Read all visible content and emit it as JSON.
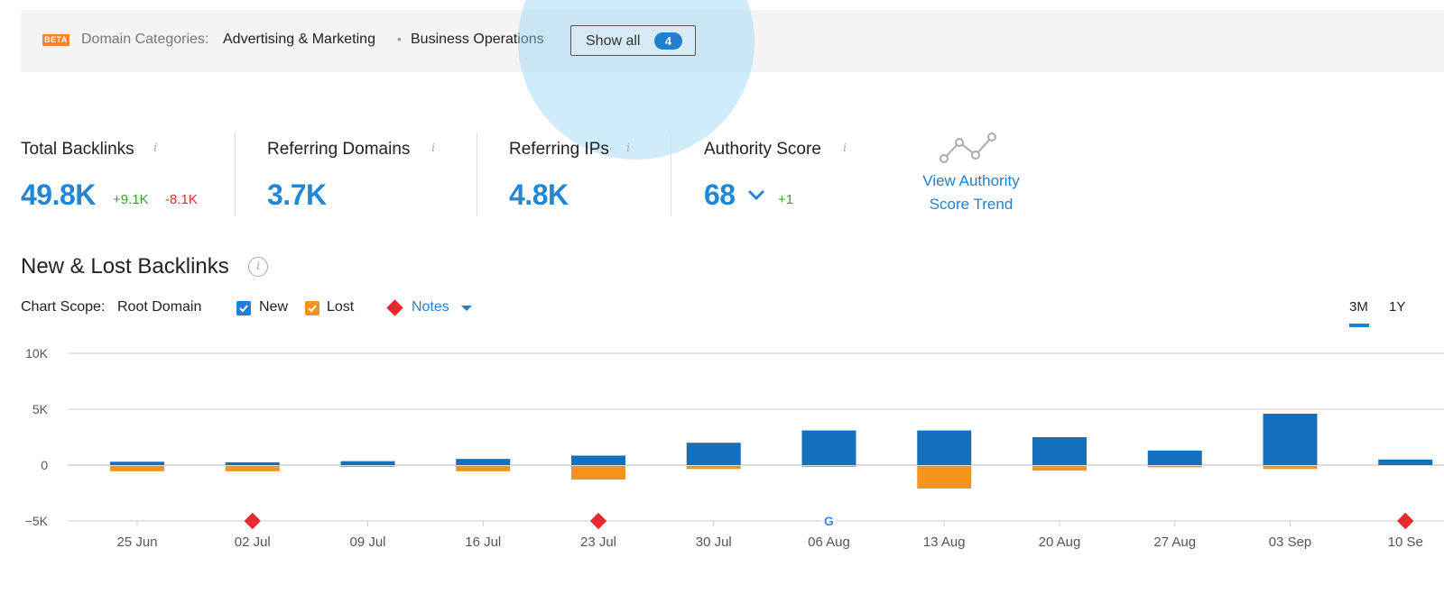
{
  "banner": {
    "beta_badge": "BETA",
    "label": "Domain Categories:",
    "categories": [
      "Advertising & Marketing",
      "Business Operations"
    ],
    "separator": "•",
    "show_all_label": "Show all",
    "show_all_count": "4"
  },
  "metrics": {
    "total_backlinks": {
      "label": "Total Backlinks",
      "value": "49.8K",
      "new": "+9.1K",
      "lost": "-8.1K"
    },
    "referring_domains": {
      "label": "Referring Domains",
      "value": "3.7K"
    },
    "referring_ips": {
      "label": "Referring IPs",
      "value": "4.8K"
    },
    "authority_score": {
      "label": "Authority Score",
      "value": "68",
      "change": "+1"
    },
    "info_glyph": "i",
    "trend_link": [
      "View Authority",
      "Score Trend"
    ]
  },
  "section": {
    "title": "New & Lost Backlinks",
    "info_glyph": "i",
    "scope_label": "Chart Scope:",
    "scope_value": "Root Domain",
    "legend_new": "New",
    "legend_lost": "Lost",
    "notes_label": "Notes",
    "periods": [
      "3M",
      "1Y"
    ],
    "active_period": "3M"
  },
  "colors": {
    "new": "#1470bd",
    "lost": "#f5931e",
    "note": "#e8292e",
    "accent": "#1f7fd0"
  },
  "chart_data": {
    "type": "bar",
    "categories": [
      "25 Jun",
      "02 Jul",
      "09 Jul",
      "16 Jul",
      "23 Jul",
      "30 Jul",
      "06 Aug",
      "13 Aug",
      "20 Aug",
      "27 Aug",
      "03 Sep",
      "10 Se"
    ],
    "series": [
      {
        "name": "New",
        "values": [
          300,
          250,
          350,
          550,
          850,
          2000,
          3100,
          3100,
          2500,
          1300,
          4600,
          500
        ]
      },
      {
        "name": "Lost",
        "values": [
          -550,
          -550,
          -150,
          -550,
          -1300,
          -350,
          -150,
          -2100,
          -500,
          -200,
          -350,
          0
        ]
      }
    ],
    "ylim": [
      -5000,
      10000
    ],
    "yticks": [
      -5000,
      0,
      5000,
      10000
    ],
    "ytick_labels": [
      "−5K",
      "0",
      "5K",
      "10K"
    ],
    "grid": true,
    "note_markers": [
      {
        "x": "02 Jul",
        "kind": "note"
      },
      {
        "x": "23 Jul",
        "kind": "note"
      },
      {
        "x": "06 Aug",
        "kind": "google",
        "label": "G"
      },
      {
        "x": "10 Se",
        "kind": "note"
      }
    ]
  }
}
